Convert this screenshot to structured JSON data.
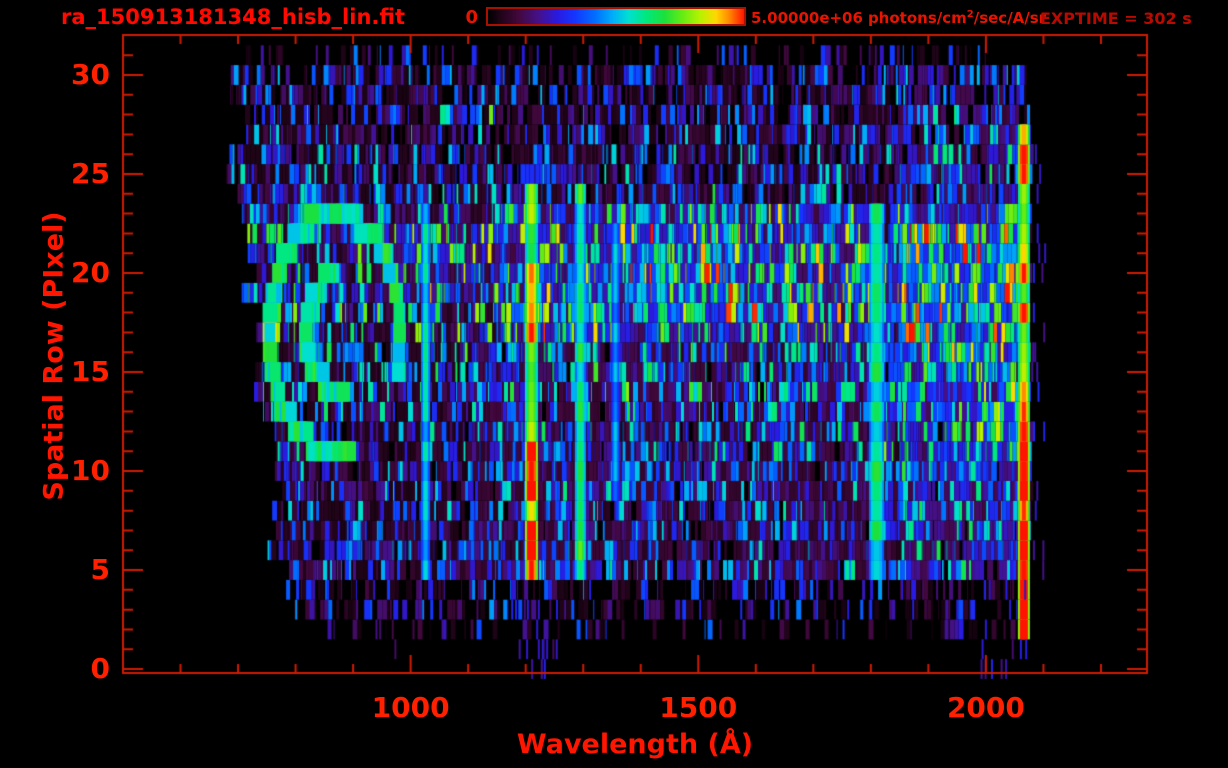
{
  "chart_data": {
    "type": "heatmap",
    "title": "ra_150913181348_hisb_lin.fit",
    "xlabel": "Wavelength (Å)",
    "ylabel": "Spatial Row (PIxel)",
    "exptime": "EXPTIME = 302 s",
    "xlim": [
      500,
      2280
    ],
    "ylim": [
      -0.2,
      32.02
    ],
    "x_major_ticks": [
      1000,
      1500,
      2000
    ],
    "x_minor_tick_step": 100,
    "x_minor_tick_range": [
      600,
      2200
    ],
    "y_major_ticks": [
      0,
      5,
      10,
      15,
      20,
      25,
      30
    ],
    "y_minor_tick_step": 1,
    "value_range": [
      0,
      5000000
    ],
    "colorbar": {
      "min_label": "0",
      "max_label": "5.00000e+06",
      "units_pre": "photons/cm",
      "units_sup": "2",
      "units_post": "/sec/A/sr"
    },
    "colors": {
      "frame": "#cf1b00",
      "title": "#ff0a00",
      "tick_label": "#ff2000",
      "axis_label": "#ff1600",
      "colorbar_text": "#e81400",
      "exptime_text": "#b80a00",
      "colorbar_border": "#a81000",
      "background": "#000000"
    },
    "colormap": [
      [
        0,
        "#000000"
      ],
      [
        0.05,
        "#200418"
      ],
      [
        0.12,
        "#42083e"
      ],
      [
        0.2,
        "#44118c"
      ],
      [
        0.27,
        "#2a1ae0"
      ],
      [
        0.34,
        "#1436ff"
      ],
      [
        0.42,
        "#0070ff"
      ],
      [
        0.49,
        "#00b0f8"
      ],
      [
        0.55,
        "#00e0d0"
      ],
      [
        0.62,
        "#00e87c"
      ],
      [
        0.69,
        "#1ce03c"
      ],
      [
        0.76,
        "#66ec14"
      ],
      [
        0.83,
        "#b8f200"
      ],
      [
        0.89,
        "#ffd800"
      ],
      [
        0.94,
        "#ff8c00"
      ],
      [
        0.98,
        "#ff3c00"
      ],
      [
        1,
        "#ff1400"
      ]
    ],
    "seed": 1509131813,
    "features": {
      "row_profiles": [
        {
          "rows": [
            2,
            2
          ],
          "presence": 0.25,
          "base": 0.26,
          "lstart": 820,
          "lend": 2075
        },
        {
          "rows": [
            3,
            4
          ],
          "presence": 0.5,
          "base": 0.3,
          "lstart": 770,
          "lend": 2075
        },
        {
          "rows": [
            5,
            7
          ],
          "presence": 0.93,
          "base": 0.34,
          "lstart": 745,
          "lend": 2075
        },
        {
          "rows": [
            8,
            10
          ],
          "presence": 0.95,
          "base": 0.36,
          "lstart": 735,
          "lend": 2075
        },
        {
          "rows": [
            11,
            13
          ],
          "presence": 0.97,
          "base": 0.4,
          "lstart": 725,
          "lend": 2075
        },
        {
          "rows": [
            14,
            16
          ],
          "presence": 0.97,
          "base": 0.44,
          "lstart": 715,
          "lend": 2075
        },
        {
          "rows": [
            17,
            22
          ],
          "presence": 1,
          "base": 0.52,
          "lstart": 705,
          "lend": 2075
        },
        {
          "rows": [
            23,
            23
          ],
          "presence": 1,
          "base": 0.46,
          "lstart": 690,
          "lend": 2075
        },
        {
          "rows": [
            24,
            26
          ],
          "presence": 0.92,
          "base": 0.38,
          "lstart": 678,
          "lend": 2075
        },
        {
          "rows": [
            27,
            28
          ],
          "presence": 0.88,
          "base": 0.36,
          "lstart": 678,
          "lend": 2075
        },
        {
          "rows": [
            29,
            30
          ],
          "presence": 0.78,
          "base": 0.33,
          "lstart": 678,
          "lend": 2070
        },
        {
          "rows": [
            31,
            31
          ],
          "presence": 0.3,
          "base": 0.28,
          "lstart": 700,
          "lend": 2060
        }
      ],
      "bands": [
        {
          "rows": [
            17,
            23
          ],
          "lrange": [
            1150,
            1820
          ],
          "boost": 0.16
        },
        {
          "rows": [
            18,
            22
          ],
          "lrange": [
            1380,
            1570
          ],
          "boost": 0.1
        },
        {
          "rows": [
            19,
            22
          ],
          "lrange": [
            940,
            1160
          ],
          "boost": 0.1
        },
        {
          "rows": [
            5,
            16
          ],
          "lrange": [
            1100,
            1840
          ],
          "boost": 0.06
        },
        {
          "rows": [
            16,
            22
          ],
          "lrange": [
            1845,
            2062
          ],
          "boost": 0.34
        },
        {
          "rows": [
            10,
            15
          ],
          "lrange": [
            1845,
            2062
          ],
          "boost": 0.22
        },
        {
          "rows": [
            5,
            9
          ],
          "lrange": [
            1845,
            2062
          ],
          "boost": 0.15
        },
        {
          "rows": [
            23,
            25
          ],
          "lrange": [
            1845,
            2062
          ],
          "boost": 0.14
        },
        {
          "rows": [
            26,
            30
          ],
          "lrange": [
            1845,
            2062
          ],
          "boost": 0.1
        },
        {
          "rows": [
            11,
            21
          ],
          "lrange": [
            1790,
            1838
          ],
          "boost": 0.16
        }
      ],
      "lines": [
        {
          "l": 1026,
          "w": 5,
          "rows": [
            5,
            23
          ],
          "imin": 0.42,
          "imax": 0.58,
          "hot": false
        },
        {
          "l": 1210,
          "w": 9,
          "rows": [
            5,
            24
          ],
          "imin": 0.62,
          "imax": 0.95,
          "hot": true
        },
        {
          "l": 1295,
          "w": 7,
          "rows": [
            5,
            24
          ],
          "imin": 0.5,
          "imax": 0.72,
          "hot": false
        },
        {
          "l": 1356,
          "w": 4,
          "rows": [
            9,
            22
          ],
          "imin": 0.38,
          "imax": 0.52,
          "hot": false
        },
        {
          "l": 1810,
          "w": 11,
          "rows": [
            5,
            23
          ],
          "imin": 0.48,
          "imax": 0.68,
          "hot": false
        },
        {
          "l": 2066,
          "w": 8,
          "rows": [
            2,
            27
          ],
          "imin": 0.68,
          "imax": 1,
          "hot": true
        }
      ],
      "ring": {
        "l_center": 868,
        "row_center": 17,
        "rx_l": 113,
        "ry_rows": 6,
        "imin": 0.5,
        "imax": 0.72,
        "outer_arc": [
          -15,
          285
        ],
        "inner_arc": [
          95,
          290
        ],
        "inner_scale": 0.45,
        "hot_angle": 178
      },
      "sparse": [
        {
          "count": 26,
          "rows": [
            4,
            26
          ],
          "lrange": [
            2076,
            2102
          ],
          "imin": 0.18,
          "imax": 0.32
        },
        {
          "count": 18,
          "rows": [
            0,
            3
          ],
          "lrange": [
            1180,
            1255
          ],
          "imin": 0.15,
          "imax": 0.3
        },
        {
          "count": 14,
          "rows": [
            0,
            4
          ],
          "lrange": [
            1990,
            2070
          ],
          "imin": 0.15,
          "imax": 0.3
        },
        {
          "count": 10,
          "rows": [
            1,
            4
          ],
          "lrange": [
            900,
            1180
          ],
          "imin": 0.12,
          "imax": 0.25
        }
      ]
    }
  }
}
